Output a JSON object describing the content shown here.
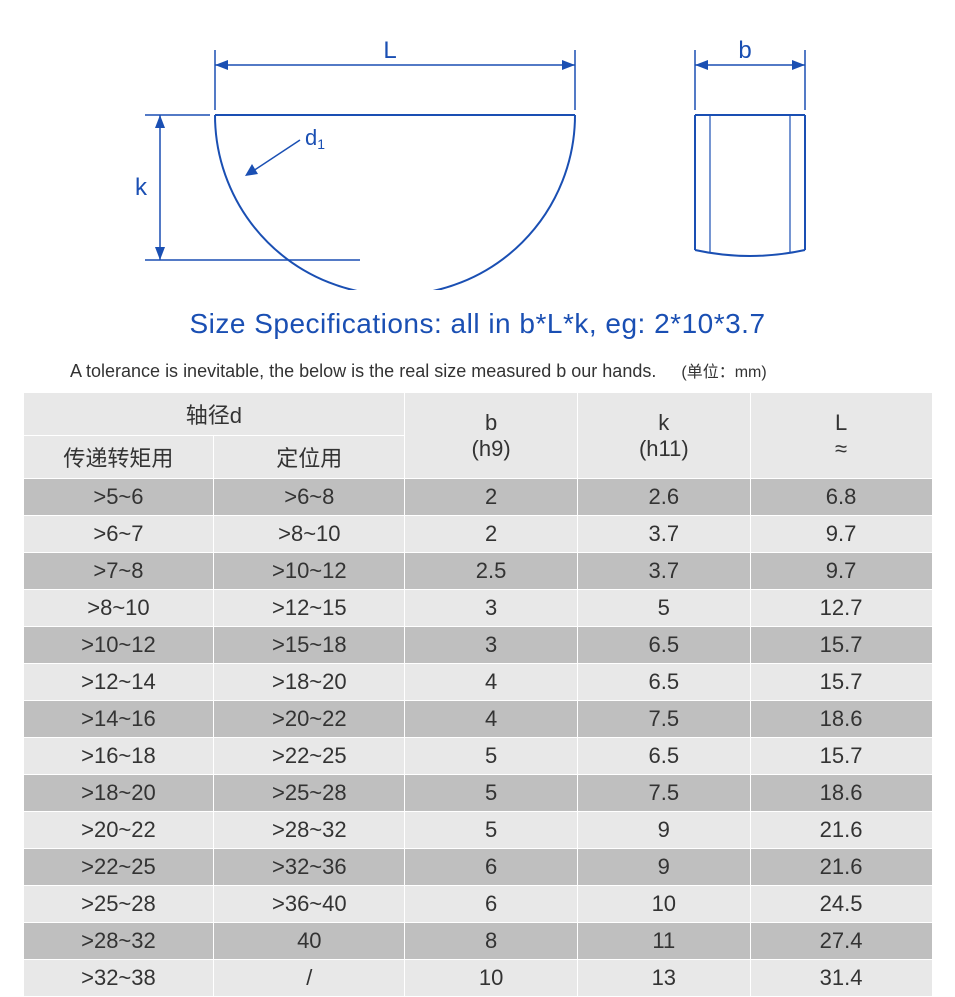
{
  "diagram": {
    "label_L": "L",
    "label_b": "b",
    "label_k": "k",
    "label_d1": "d₁",
    "stroke": "#1a4fb3",
    "stroke_width": 2
  },
  "title": "Size Specifications: all in b*L*k, eg: 2*10*3.7",
  "tolerance_text": "A tolerance is inevitable, the below is the real size measured b our hands.",
  "unit_note": "(单位：mm)",
  "table": {
    "header_group": "轴径d",
    "header_col1_sub": "传递转矩用",
    "header_col2_sub": "定位用",
    "header_b": "b",
    "header_b_sub": "(h9)",
    "header_k": "k",
    "header_k_sub": "(h11)",
    "header_L": "L",
    "header_L_sub": "≈",
    "rows": [
      {
        "c1": ">5~6",
        "c2": ">6~8",
        "b": "2",
        "k": "2.6",
        "L": "6.8"
      },
      {
        "c1": ">6~7",
        "c2": ">8~10",
        "b": "2",
        "k": "3.7",
        "L": "9.7"
      },
      {
        "c1": ">7~8",
        "c2": ">10~12",
        "b": "2.5",
        "k": "3.7",
        "L": "9.7"
      },
      {
        "c1": ">8~10",
        "c2": ">12~15",
        "b": "3",
        "k": "5",
        "L": "12.7"
      },
      {
        "c1": ">10~12",
        "c2": ">15~18",
        "b": "3",
        "k": "6.5",
        "L": "15.7"
      },
      {
        "c1": ">12~14",
        "c2": ">18~20",
        "b": "4",
        "k": "6.5",
        "L": "15.7"
      },
      {
        "c1": ">14~16",
        "c2": ">20~22",
        "b": "4",
        "k": "7.5",
        "L": "18.6"
      },
      {
        "c1": ">16~18",
        "c2": ">22~25",
        "b": "5",
        "k": "6.5",
        "L": "15.7"
      },
      {
        "c1": ">18~20",
        "c2": ">25~28",
        "b": "5",
        "k": "7.5",
        "L": "18.6"
      },
      {
        "c1": ">20~22",
        "c2": ">28~32",
        "b": "5",
        "k": "9",
        "L": "21.6"
      },
      {
        "c1": ">22~25",
        "c2": ">32~36",
        "b": "6",
        "k": "9",
        "L": "21.6"
      },
      {
        "c1": ">25~28",
        "c2": ">36~40",
        "b": "6",
        "k": "10",
        "L": "24.5"
      },
      {
        "c1": ">28~32",
        "c2": "40",
        "b": "8",
        "k": "11",
        "L": "27.4"
      },
      {
        "c1": ">32~38",
        "c2": "/",
        "b": "10",
        "k": "13",
        "L": "31.4"
      }
    ]
  },
  "colors": {
    "header_bg": "#e8e8e8",
    "row_dark": "#bfbfbf",
    "row_light": "#e8e8e8",
    "title_color": "#1a4fb3"
  }
}
